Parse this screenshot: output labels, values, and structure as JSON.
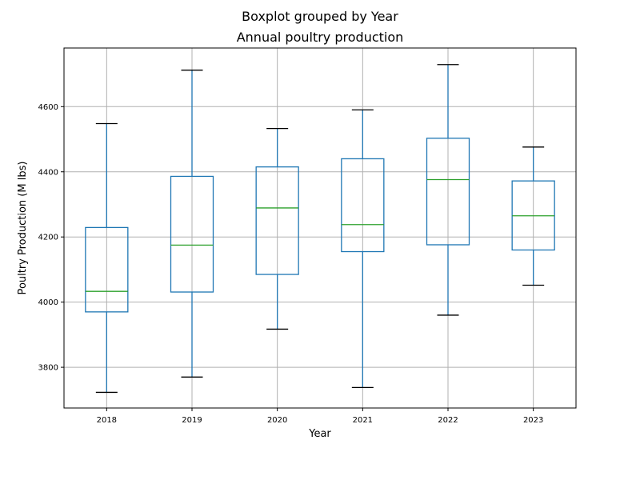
{
  "chart_data": {
    "type": "boxplot",
    "suptitle": "Boxplot grouped by Year",
    "title": "Annual poultry production",
    "xlabel": "Year",
    "ylabel": "Poultry Production (M lbs)",
    "categories": [
      "2018",
      "2019",
      "2020",
      "2021",
      "2022",
      "2023"
    ],
    "boxes": [
      {
        "category": "2018",
        "whisker_low": 3723,
        "q1": 3970,
        "median": 4033,
        "q3": 4229,
        "whisker_high": 4548
      },
      {
        "category": "2019",
        "whisker_low": 3770,
        "q1": 4031,
        "median": 4175,
        "q3": 4386,
        "whisker_high": 4712
      },
      {
        "category": "2020",
        "whisker_low": 3917,
        "q1": 4085,
        "median": 4289,
        "q3": 4415,
        "whisker_high": 4533
      },
      {
        "category": "2021",
        "whisker_low": 3738,
        "q1": 4155,
        "median": 4238,
        "q3": 4440,
        "whisker_high": 4590
      },
      {
        "category": "2022",
        "whisker_low": 3960,
        "q1": 4176,
        "median": 4376,
        "q3": 4503,
        "whisker_high": 4729
      },
      {
        "category": "2023",
        "whisker_low": 4052,
        "q1": 4160,
        "median": 4265,
        "q3": 4372,
        "whisker_high": 4476
      }
    ],
    "ylim": [
      3675,
      4780
    ],
    "yticks": [
      3800,
      4000,
      4200,
      4400,
      4600
    ],
    "ytick_labels": [
      "3800",
      "4000",
      "4200",
      "4400",
      "4600"
    ],
    "grid": true,
    "colors": {
      "box": "#1f77b4",
      "median": "#2ca02c",
      "caps": "#000000",
      "grid": "#b0b0b0",
      "axes": "#000000"
    }
  }
}
